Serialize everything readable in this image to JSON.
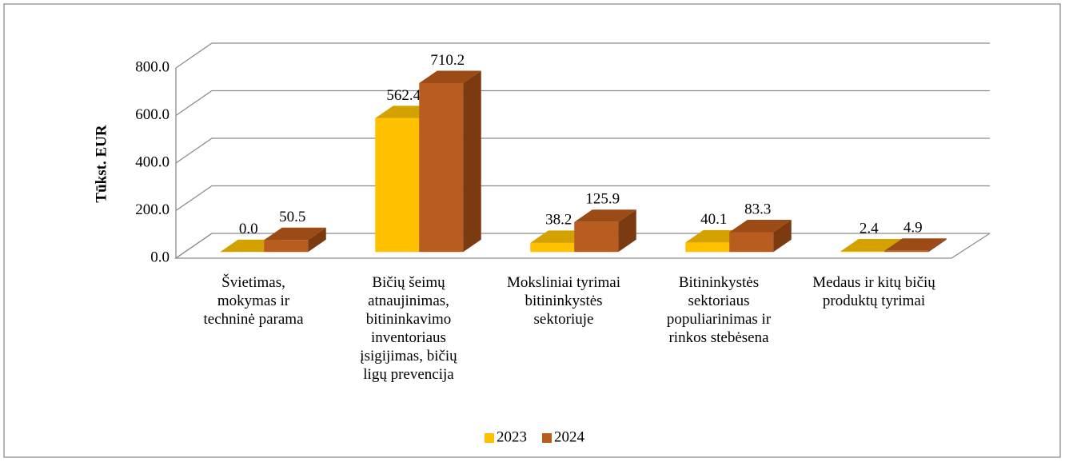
{
  "chart_data": {
    "type": "bar3d",
    "y_axis_label": "Tūkst. EUR",
    "categories": [
      "Švietimas,\nmokymas ir\ntechninė parama",
      "Bičių šeimų\natnaujinimas,\nbitininkavimo\ninventoriaus\nįsigijimas, bičių\nligų prevencija",
      "Moksliniai tyrimai\nbitininkystės\nsektoriuje",
      "Bitininkystės\nsektoriaus\npopuliarinimas ir\nrinkos stebėsena",
      "Medaus ir kitų bičių\nproduktų tyrimai"
    ],
    "series": [
      {
        "name": "2023",
        "color": "#FFC000",
        "side": "#C99700",
        "top": "#D4A200",
        "values": [
          0,
          562.4,
          38.2,
          40.1,
          2.4
        ],
        "value_labels": [
          "0.0",
          "562.4",
          "38.2",
          "40.1",
          "2.4"
        ]
      },
      {
        "name": "2024",
        "color": "#B95C1F",
        "side": "#7B3A0F",
        "top": "#9C4A16",
        "values": [
          50.5,
          710.2,
          125.9,
          83.3,
          4.9
        ],
        "value_labels": [
          "50.5",
          "710.2",
          "125.9",
          "83.3",
          "4.9"
        ]
      }
    ],
    "ylim": [
      0,
      800
    ],
    "yticks": [
      {
        "value": 0,
        "label": "0.0"
      },
      {
        "value": 200,
        "label": "200.0"
      },
      {
        "value": 400,
        "label": "400.0"
      },
      {
        "value": 600,
        "label": "600.0"
      },
      {
        "value": 800,
        "label": "800.0"
      }
    ],
    "grid": true,
    "legend": "bottom"
  }
}
